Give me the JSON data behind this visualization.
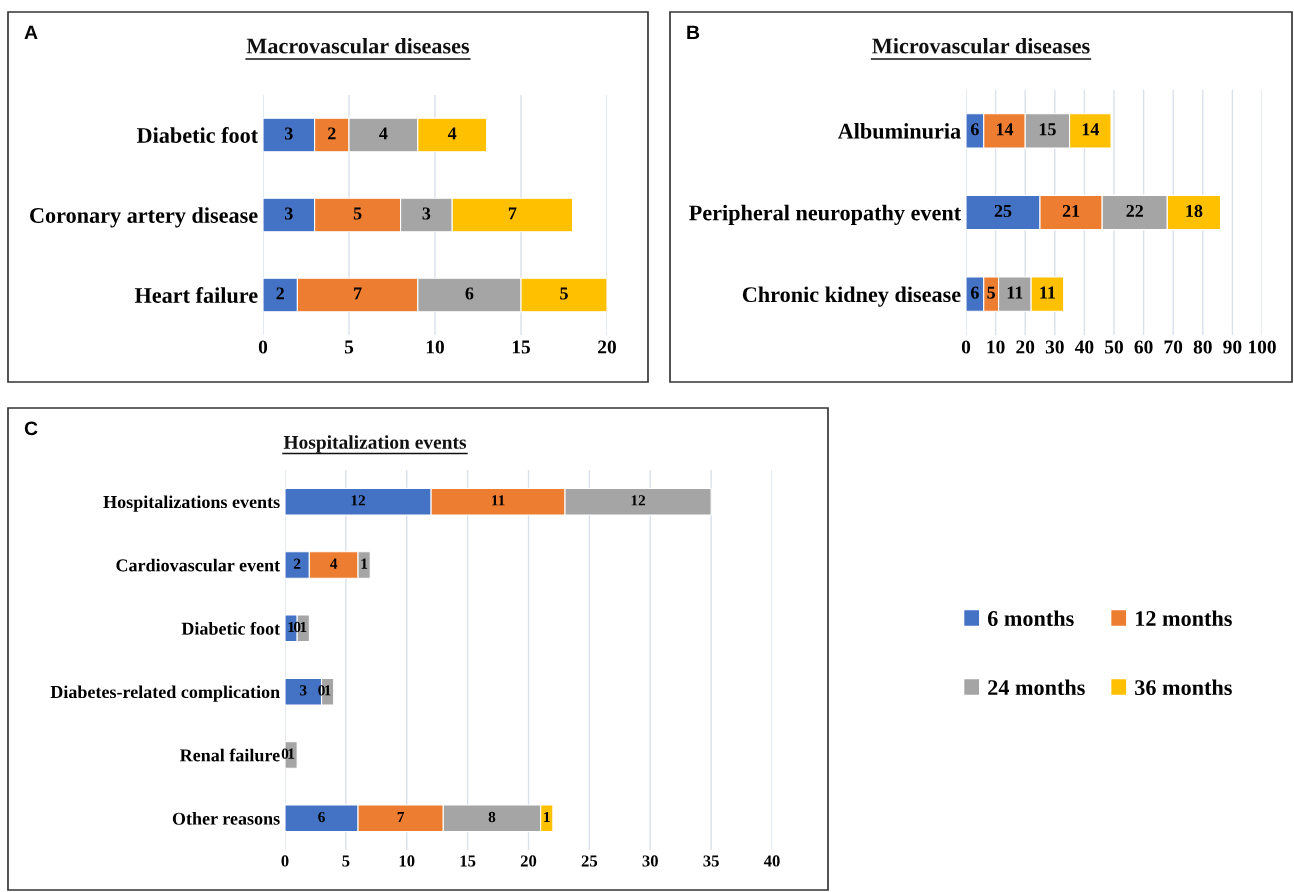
{
  "chart_data": [
    {
      "type": "bar",
      "title": "Macrovascular diseases",
      "annotations": [
        "A"
      ],
      "orientation": "horizontal",
      "stacked": true,
      "data_labels": true,
      "grid": "x",
      "xlim": [
        0,
        20
      ],
      "xticks": [
        0,
        5,
        10,
        15,
        20
      ],
      "categories": [
        "Diabetic foot",
        "Coronary artery disease",
        "Heart failure"
      ],
      "series": [
        {
          "color": "#4472c4",
          "values": [
            3,
            3,
            2
          ]
        },
        {
          "color": "#ed7d31",
          "values": [
            2,
            5,
            7
          ]
        },
        {
          "color": "#a5a5a5",
          "values": [
            4,
            3,
            6
          ]
        },
        {
          "color": "#ffc000",
          "values": [
            4,
            7,
            5
          ]
        }
      ]
    },
    {
      "type": "bar",
      "title": "Microvascular diseases",
      "annotations": [
        "B"
      ],
      "orientation": "horizontal",
      "stacked": true,
      "data_labels": true,
      "grid": "x",
      "xlim": [
        0,
        100
      ],
      "xticks": [
        0,
        10,
        20,
        30,
        40,
        50,
        60,
        70,
        80,
        90,
        100
      ],
      "categories": [
        "Albuminuria",
        "Peripheral neuropathy event",
        "Chronic kidney disease"
      ],
      "series": [
        {
          "color": "#4472c4",
          "values": [
            6,
            25,
            6
          ]
        },
        {
          "color": "#ed7d31",
          "values": [
            14,
            21,
            5
          ]
        },
        {
          "color": "#a5a5a5",
          "values": [
            15,
            22,
            11
          ]
        },
        {
          "color": "#ffc000",
          "values": [
            14,
            18,
            11
          ]
        }
      ]
    },
    {
      "type": "bar",
      "title": "Hospitalization events",
      "annotations": [
        "C"
      ],
      "orientation": "horizontal",
      "stacked": true,
      "data_labels": true,
      "grid": "x",
      "legend": "right",
      "xlim": [
        0,
        40
      ],
      "xticks": [
        0,
        5,
        10,
        15,
        20,
        25,
        30,
        35,
        40
      ],
      "categories": [
        "Hospitalizations events",
        "Cardiovascular event",
        "Diabetic foot",
        "Diabetes-related complication",
        "Renal failure",
        "Other reasons"
      ],
      "series": [
        {
          "name": "6 months",
          "color": "#4472c4",
          "values": [
            12,
            2,
            1,
            3,
            0,
            6
          ]
        },
        {
          "name": "12 months",
          "color": "#ed7d31",
          "values": [
            11,
            4,
            0,
            0,
            null,
            7
          ]
        },
        {
          "name": "24 months",
          "color": "#a5a5a5",
          "values": [
            12,
            1,
            1,
            1,
            1,
            8
          ]
        },
        {
          "name": "36 months",
          "color": "#ffc000",
          "values": [
            null,
            null,
            null,
            null,
            null,
            1
          ]
        }
      ]
    }
  ]
}
